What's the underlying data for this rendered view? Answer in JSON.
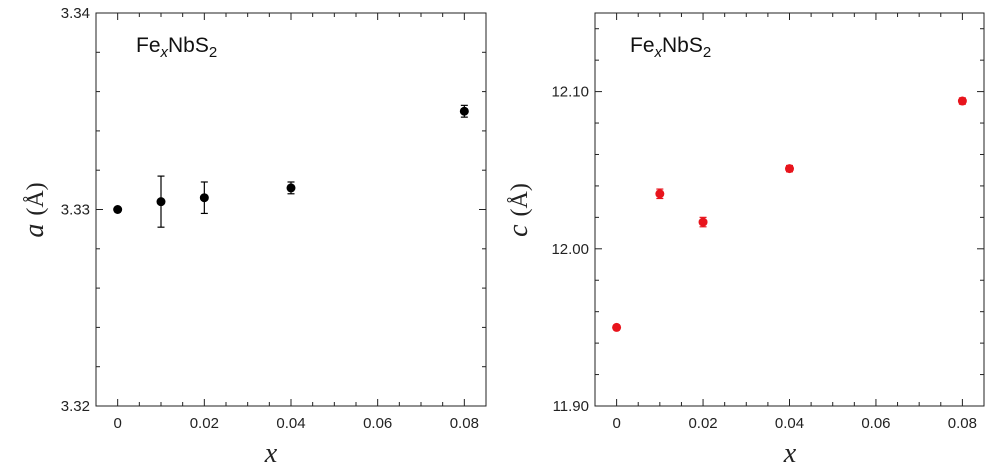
{
  "chart_data": [
    {
      "type": "scatter",
      "title": "FeₓNbS₂",
      "title_parts": {
        "base": "Fe",
        "sub1": "x",
        "mid": "NbS",
        "sub2": "2"
      },
      "xlabel": "x",
      "ylabel": "a (Å)",
      "ylabel_parts": {
        "var": "a",
        "unit": "(Å)"
      },
      "xlim": [
        -0.005,
        0.085
      ],
      "ylim": [
        3.32,
        3.34
      ],
      "x_ticks": [
        0,
        0.02,
        0.04,
        0.06,
        0.08
      ],
      "x_tick_labels": [
        "0",
        "0.02",
        "0.04",
        "0.06",
        "0.08"
      ],
      "y_ticks": [
        3.32,
        3.33,
        3.34
      ],
      "y_tick_labels": [
        "3.32",
        "3.33",
        "3.34"
      ],
      "grid": false,
      "marker_color": "#000000",
      "x": [
        0,
        0.01,
        0.02,
        0.04,
        0.08
      ],
      "y": [
        3.33,
        3.3304,
        3.3306,
        3.3311,
        3.335
      ],
      "yerr": [
        0.0001,
        0.0013,
        0.0008,
        0.0003,
        0.0003
      ]
    },
    {
      "type": "scatter",
      "title": "FeₓNbS₂",
      "title_parts": {
        "base": "Fe",
        "sub1": "x",
        "mid": "NbS",
        "sub2": "2"
      },
      "xlabel": "x",
      "ylabel": "c (Å)",
      "ylabel_parts": {
        "var": "c",
        "unit": "(Å)"
      },
      "xlim": [
        -0.005,
        0.085
      ],
      "ylim": [
        11.9,
        12.15
      ],
      "x_ticks": [
        0,
        0.02,
        0.04,
        0.06,
        0.08
      ],
      "x_tick_labels": [
        "0",
        "0.02",
        "0.04",
        "0.06",
        "0.08"
      ],
      "y_ticks": [
        11.9,
        12.0,
        12.1
      ],
      "y_tick_labels": [
        "11.90",
        "12.00",
        "12.10"
      ],
      "grid": false,
      "marker_color": "#e8141c",
      "x": [
        0,
        0.01,
        0.02,
        0.04,
        0.08
      ],
      "y": [
        11.95,
        12.035,
        12.017,
        12.051,
        12.094
      ],
      "yerr": [
        0.001,
        0.003,
        0.003,
        0.002,
        0.002
      ]
    }
  ]
}
